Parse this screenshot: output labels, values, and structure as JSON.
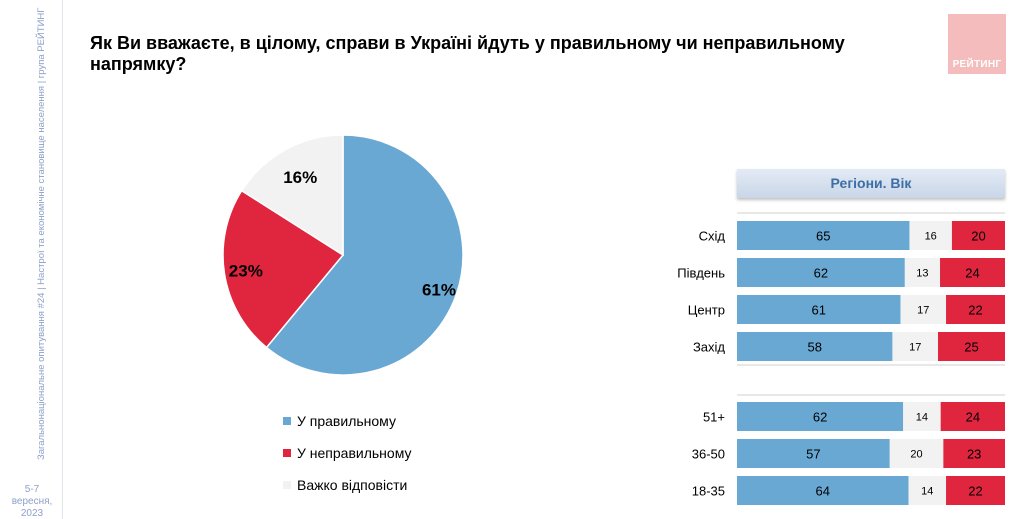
{
  "sidebar": {
    "vertical_text": "Загальнонаціональне опитування #24 | Настрої та економічне становище населення | група РЕЙТИНГ",
    "date": "5-7 вересня,",
    "year": "2023"
  },
  "header": {
    "title": "Як Ви вважаєте, в цілому, справи в Україні йдуть у правильному чи неправильному напрямку?",
    "logo_text": "РЕЙТИНГ"
  },
  "colors": {
    "right": "#6aa8d4",
    "wrong": "#e0253f",
    "hard": "#f2f2f2",
    "logo": "#f4bcbc"
  },
  "chart_data": [
    {
      "type": "pie",
      "labels": [
        "У правильному",
        "У неправильному",
        "Важко відповісти"
      ],
      "values": [
        61,
        23,
        16
      ],
      "value_labels": [
        "61%",
        "23%",
        "16%"
      ]
    },
    {
      "type": "bar",
      "stacked": true,
      "orientation": "horizontal",
      "title": "Регіони. Вік",
      "categories": [
        "Схід",
        "Південь",
        "Центр",
        "Захід",
        "51+",
        "36-50",
        "18-35"
      ],
      "series": [
        {
          "name": "У правильному",
          "values": [
            65,
            62,
            61,
            58,
            62,
            57,
            64
          ]
        },
        {
          "name": "Важко відповісти",
          "values": [
            16,
            13,
            17,
            17,
            14,
            20,
            14
          ]
        },
        {
          "name": "У неправильному",
          "values": [
            20,
            24,
            22,
            25,
            24,
            23,
            22
          ]
        }
      ]
    }
  ]
}
